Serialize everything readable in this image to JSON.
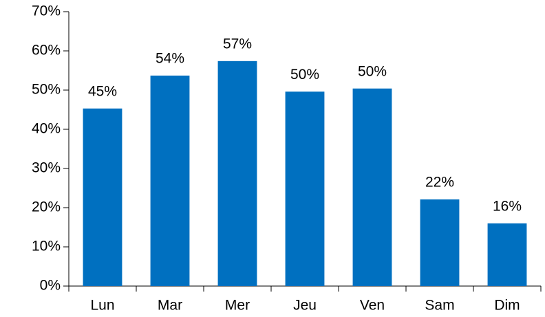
{
  "chart_data": {
    "type": "bar",
    "categories": [
      "Lun",
      "Mar",
      "Mer",
      "Jeu",
      "Ven",
      "Sam",
      "Dim"
    ],
    "values": [
      45.3,
      53.7,
      57.4,
      49.6,
      50.4,
      22.1,
      16.0
    ],
    "value_labels": [
      "45%",
      "54%",
      "57%",
      "50%",
      "50%",
      "22%",
      "16%"
    ],
    "color": "#0070c0",
    "ylim": [
      0,
      70
    ],
    "yticks": [
      {
        "value": 0,
        "label": "0%"
      },
      {
        "value": 10,
        "label": "10%"
      },
      {
        "value": 20,
        "label": "20%"
      },
      {
        "value": 30,
        "label": "30%"
      },
      {
        "value": 40,
        "label": "40%"
      },
      {
        "value": 50,
        "label": "50%"
      },
      {
        "value": 60,
        "label": "60%"
      },
      {
        "value": 70,
        "label": "70%"
      }
    ],
    "grid": false
  }
}
